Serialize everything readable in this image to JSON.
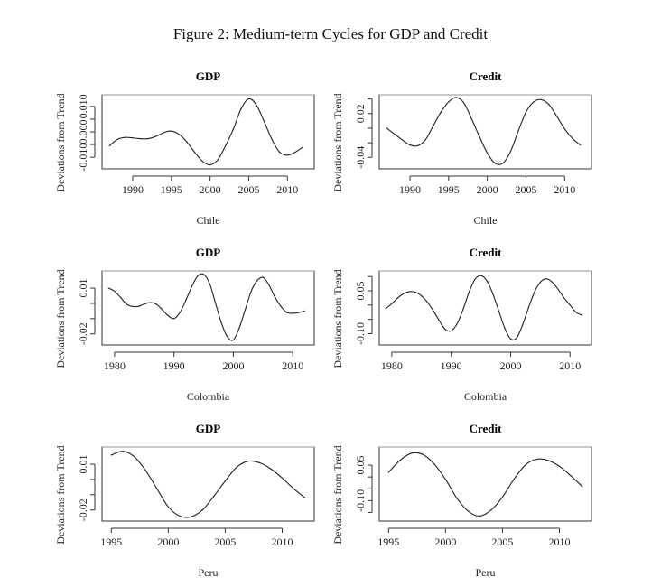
{
  "figure_title": "Figure 2: Medium-term Cycles for GDP and Credit",
  "chart_data": [
    {
      "type": "line",
      "country": "Chile",
      "series_name": "GDP",
      "title": "GDP",
      "ylabel": "Deviations from Trend",
      "xlabel": "Chile",
      "xlim": [
        1986.5,
        2013
      ],
      "ylim": [
        -0.0135,
        0.0135
      ],
      "xticks": [
        1990,
        1995,
        2000,
        2005,
        2010
      ],
      "yticks": [
        -0.01,
        -0.005,
        0.0,
        0.005,
        0.01
      ],
      "ytick_labels": {
        "-0.01": "-0.010",
        "0": "0.000",
        "0.01": "0.010"
      },
      "x": [
        1987,
        1988,
        1989,
        1990,
        1991,
        1992,
        1993,
        1994,
        1995,
        1996,
        1997,
        1998,
        1999,
        2000,
        2001,
        2002,
        2003,
        2004,
        2005,
        2006,
        2007,
        2008,
        2009,
        2010,
        2011,
        2012
      ],
      "y": [
        -0.0055,
        -0.003,
        -0.0022,
        -0.0024,
        -0.0027,
        -0.0027,
        -0.0018,
        -0.0003,
        0.0003,
        -0.001,
        -0.004,
        -0.008,
        -0.0115,
        -0.013,
        -0.011,
        -0.0055,
        0.001,
        0.009,
        0.013,
        0.0105,
        0.004,
        -0.003,
        -0.008,
        -0.0092,
        -0.008,
        -0.006
      ]
    },
    {
      "type": "line",
      "country": "Chile",
      "series_name": "Credit",
      "title": "Credit",
      "ylabel": "Deviations from Trend",
      "xlabel": "Chile",
      "xlim": [
        1986.5,
        2013
      ],
      "ylim": [
        -0.052,
        0.042
      ],
      "xticks": [
        1990,
        1995,
        2000,
        2005,
        2010
      ],
      "yticks": [
        -0.04,
        -0.02,
        0.0,
        0.02,
        0.04
      ],
      "ytick_labels": {
        "-0.04": "-0.04",
        "0.02": "0.02"
      },
      "x": [
        1987,
        1988,
        1989,
        1990,
        1991,
        1992,
        1993,
        1994,
        1995,
        1996,
        1997,
        1998,
        1999,
        2000,
        2001,
        2002,
        2003,
        2004,
        2005,
        2006,
        2007,
        2008,
        2009,
        2010,
        2011,
        2012
      ],
      "y": [
        0.0,
        -0.008,
        -0.016,
        -0.023,
        -0.024,
        -0.016,
        0.003,
        0.022,
        0.036,
        0.042,
        0.034,
        0.012,
        -0.012,
        -0.034,
        -0.048,
        -0.048,
        -0.032,
        -0.004,
        0.022,
        0.036,
        0.039,
        0.032,
        0.016,
        -0.001,
        -0.014,
        -0.023
      ]
    },
    {
      "type": "line",
      "country": "Colombia",
      "series_name": "GDP",
      "title": "GDP",
      "ylabel": "Deviations from Trend",
      "xlabel": "Colombia",
      "xlim": [
        1978.5,
        2013
      ],
      "ylim": [
        -0.0255,
        0.0195
      ],
      "xticks": [
        1980,
        1990,
        2000,
        2010
      ],
      "yticks": [
        -0.02,
        -0.01,
        0.0,
        0.01
      ],
      "ytick_labels": {
        "-0.02": "-0.02",
        "0.01": "0.01"
      },
      "x": [
        1979,
        1980,
        1981,
        1982,
        1983,
        1984,
        1985,
        1986,
        1987,
        1988,
        1989,
        1990,
        1991,
        1992,
        1993,
        1994,
        1995,
        1996,
        1997,
        1998,
        1999,
        2000,
        2001,
        2002,
        2003,
        2004,
        2005,
        2006,
        2007,
        2008,
        2009,
        2010,
        2011,
        2012
      ],
      "y": [
        0.01,
        0.008,
        0.004,
        -0.0005,
        -0.002,
        -0.002,
        -0.0005,
        0.0005,
        -0.0005,
        -0.004,
        -0.008,
        -0.01,
        -0.006,
        0.002,
        0.011,
        0.018,
        0.019,
        0.013,
        0.0,
        -0.013,
        -0.022,
        -0.024,
        -0.016,
        -0.004,
        0.008,
        0.015,
        0.017,
        0.012,
        0.004,
        -0.002,
        -0.006,
        -0.0065,
        -0.006,
        -0.005
      ]
    },
    {
      "type": "line",
      "country": "Colombia",
      "series_name": "Credit",
      "title": "Credit",
      "ylabel": "Deviations from Trend",
      "xlabel": "Colombia",
      "xlim": [
        1978.5,
        2013
      ],
      "ylim": [
        -0.13,
        0.11
      ],
      "xticks": [
        1980,
        1990,
        2000,
        2010
      ],
      "yticks": [
        -0.1,
        -0.05,
        0.0,
        0.05,
        0.1
      ],
      "ytick_labels": {
        "-0.1": "-0.10",
        "0.05": "0.05"
      },
      "x": [
        1979,
        1980,
        1981,
        1982,
        1983,
        1984,
        1985,
        1986,
        1987,
        1988,
        1989,
        1990,
        1991,
        1992,
        1993,
        1994,
        1995,
        1996,
        1997,
        1998,
        1999,
        2000,
        2001,
        2002,
        2003,
        2004,
        2005,
        2006,
        2007,
        2008,
        2009,
        2010,
        2011,
        2012
      ],
      "y": [
        -0.012,
        0.005,
        0.025,
        0.04,
        0.047,
        0.045,
        0.032,
        0.01,
        -0.02,
        -0.055,
        -0.085,
        -0.09,
        -0.065,
        -0.015,
        0.045,
        0.09,
        0.103,
        0.085,
        0.04,
        -0.02,
        -0.08,
        -0.118,
        -0.115,
        -0.07,
        -0.01,
        0.045,
        0.08,
        0.092,
        0.08,
        0.055,
        0.025,
        0.0,
        -0.025,
        -0.035
      ]
    },
    {
      "type": "line",
      "country": "Peru",
      "series_name": "GDP",
      "title": "GDP",
      "ylabel": "Deviations from Trend",
      "xlabel": "Peru",
      "xlim": [
        1994.5,
        2012.5
      ],
      "ylim": [
        -0.0255,
        0.0195
      ],
      "xticks": [
        1995,
        2000,
        2005,
        2010
      ],
      "yticks": [
        -0.02,
        -0.01,
        0.0,
        0.01
      ],
      "ytick_labels": {
        "-0.02": "-0.02",
        "0.01": "0.01"
      },
      "x": [
        1995,
        1996,
        1997,
        1998,
        1999,
        2000,
        2001,
        2002,
        2003,
        2004,
        2005,
        2006,
        2007,
        2008,
        2009,
        2010,
        2011,
        2012
      ],
      "y": [
        0.016,
        0.0185,
        0.015,
        0.006,
        -0.006,
        -0.018,
        -0.024,
        -0.0245,
        -0.02,
        -0.011,
        -0.001,
        0.008,
        0.012,
        0.011,
        0.007,
        0.001,
        -0.006,
        -0.012
      ]
    },
    {
      "type": "line",
      "country": "Peru",
      "series_name": "Credit",
      "title": "Credit",
      "ylabel": "Deviations from Trend",
      "xlabel": "Peru",
      "xlim": [
        1994.5,
        2012.5
      ],
      "ylim": [
        -0.175,
        0.115
      ],
      "xticks": [
        1995,
        2000,
        2005,
        2010
      ],
      "yticks": [
        -0.15,
        -0.1,
        -0.05,
        0.0,
        0.05
      ],
      "ytick_labels": {
        "-0.1": "-0.10",
        "0.05": "0.05"
      },
      "x": [
        1995,
        1996,
        1997,
        1998,
        1999,
        2000,
        2001,
        2002,
        2003,
        2004,
        2005,
        2006,
        2007,
        2008,
        2009,
        2010,
        2011,
        2012
      ],
      "y": [
        0.02,
        0.07,
        0.1,
        0.095,
        0.055,
        -0.01,
        -0.09,
        -0.145,
        -0.165,
        -0.14,
        -0.085,
        -0.01,
        0.05,
        0.075,
        0.07,
        0.045,
        0.005,
        -0.04
      ]
    }
  ]
}
